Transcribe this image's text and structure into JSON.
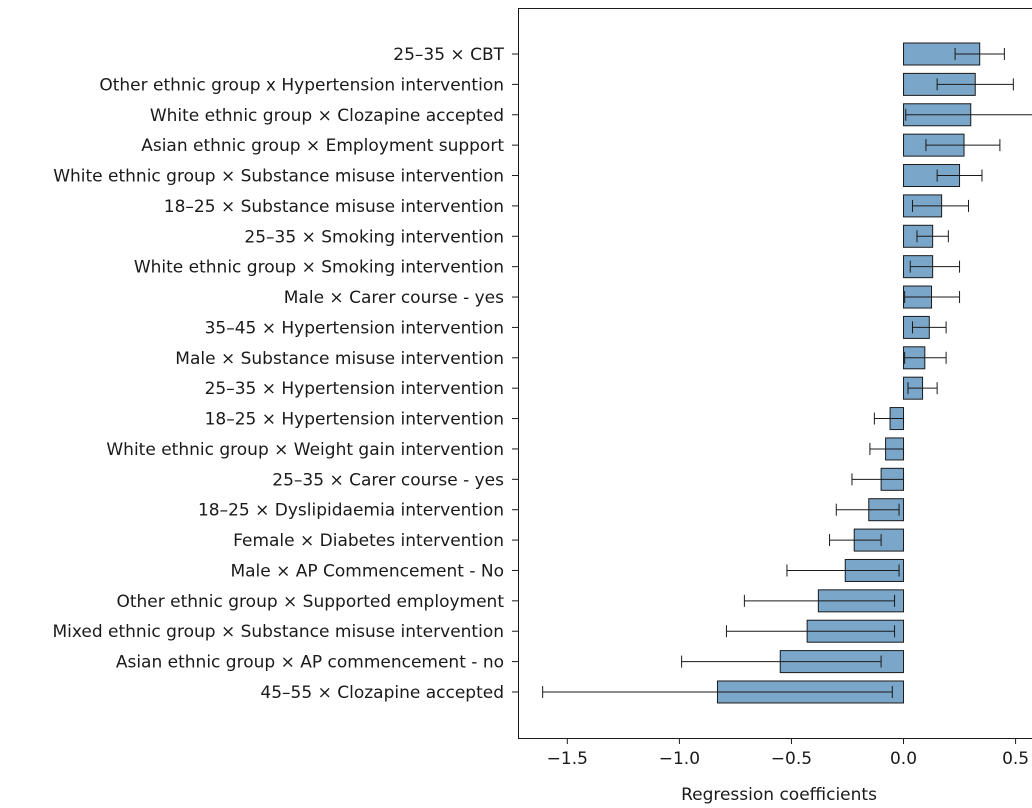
{
  "chart_data": {
    "type": "bar",
    "orientation": "horizontal",
    "title": "",
    "xlabel": "Regression coefficients",
    "ylabel": "",
    "xlim": [
      -1.72,
      0.6
    ],
    "xticks": [
      -1.5,
      -1.0,
      -0.5,
      0.0,
      0.5
    ],
    "xtick_labels": [
      "−1.5",
      "−1.0",
      "−0.5",
      "0.0",
      "0.5"
    ],
    "grid": false,
    "bar_color": "#7aa6c9",
    "categories": [
      "25–35 × CBT",
      "Other ethnic group x Hypertension intervention",
      "White ethnic group × Clozapine accepted",
      "Asian ethnic group × Employment support",
      "White ethnic group × Substance misuse intervention",
      "18–25 × Substance misuse intervention",
      "25–35 × Smoking intervention",
      "White ethnic group × Smoking intervention",
      "Male × Carer course - yes",
      "35–45 × Hypertension intervention",
      "Male × Substance misuse intervention",
      "25–35 × Hypertension intervention",
      "18–25 × Hypertension intervention",
      "White ethnic group × Weight gain intervention",
      "25–35 × Carer course - yes",
      "18–25 × Dyslipidaemia intervention",
      "Female × Diabetes intervention",
      "Male × AP Commencement - No",
      "Other ethnic group × Supported employment",
      "Mixed ethnic group × Substance misuse intervention",
      "Asian ethnic group × AP commencement - no",
      "45–55 × Clozapine accepted"
    ],
    "values": [
      0.34,
      0.32,
      0.3,
      0.27,
      0.25,
      0.17,
      0.13,
      0.13,
      0.125,
      0.115,
      0.095,
      0.085,
      -0.06,
      -0.08,
      -0.1,
      -0.155,
      -0.22,
      -0.26,
      -0.38,
      -0.43,
      -0.55,
      -0.83
    ],
    "error_low": [
      0.23,
      0.15,
      0.01,
      0.1,
      0.15,
      0.04,
      0.06,
      0.03,
      0.005,
      0.04,
      0.005,
      0.02,
      -0.13,
      -0.15,
      -0.23,
      -0.3,
      -0.33,
      -0.52,
      -0.71,
      -0.79,
      -0.99,
      -1.61
    ],
    "error_high": [
      0.45,
      0.49,
      0.59,
      0.43,
      0.35,
      0.29,
      0.2,
      0.25,
      0.25,
      0.19,
      0.19,
      0.15,
      0.0,
      0.0,
      0.0,
      -0.02,
      -0.1,
      -0.02,
      -0.04,
      -0.04,
      -0.1,
      -0.05
    ]
  }
}
